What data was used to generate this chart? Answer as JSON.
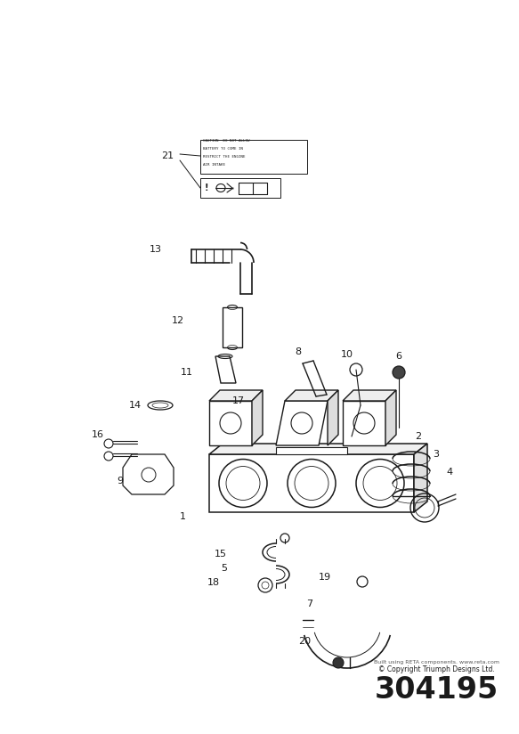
{
  "part_number": "304195",
  "copyright": "© Copyright Triumph Designs Ltd.",
  "copyright2": "Built using RETA components. www.reta.com",
  "bg_color": "#ffffff",
  "line_color": "#1a1a1a",
  "figsize": [
    5.83,
    8.24
  ],
  "dpi": 100
}
